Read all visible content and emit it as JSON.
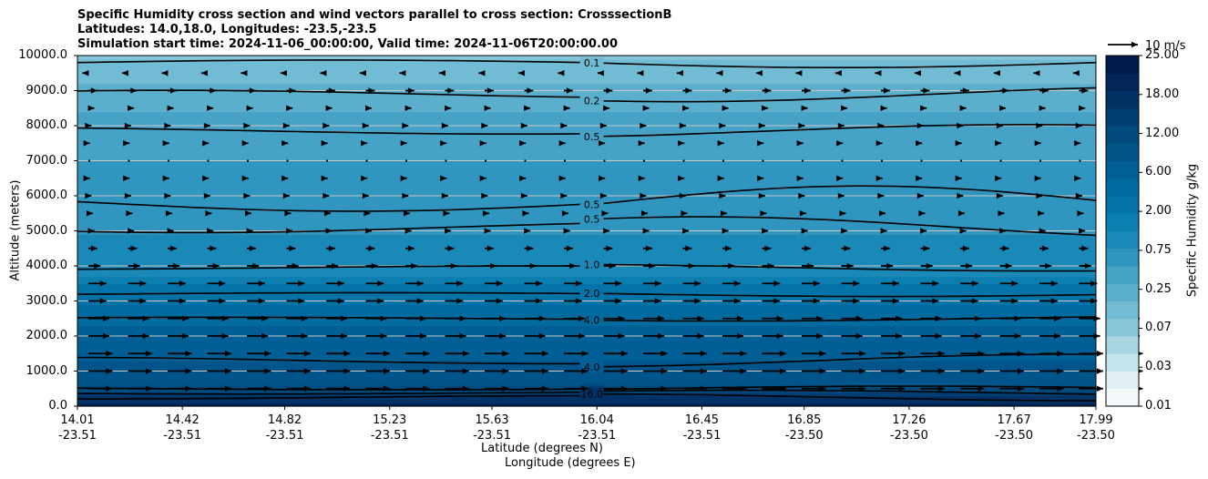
{
  "title": {
    "line1": "Specific Humidity cross section and wind vectors parallel to cross section: CrosssectionB",
    "line2": "Latitudes: 14.0,18.0, Longitudes: -23.5,-23.5",
    "line3": "Simulation start time: 2024-11-06_00:00:00, Valid time: 2024-11-06T20:00:00.00"
  },
  "chart_data": {
    "type": "heatmap",
    "subtype": "filled contour cross section with contour lines and wind vectors",
    "ylabel": "Altitude (meters)",
    "xlabel_line1": "Latitude (degrees N)",
    "xlabel_line2": "Longitude (degrees E)",
    "ylim": [
      0,
      10000
    ],
    "y_ticks": [
      "0.0",
      "1000.0",
      "2000.0",
      "3000.0",
      "4000.0",
      "5000.0",
      "6000.0",
      "7000.0",
      "8000.0",
      "9000.0",
      "10000.0"
    ],
    "x_ticks": [
      {
        "lat": "14.01",
        "lon": "-23.51"
      },
      {
        "lat": "14.42",
        "lon": "-23.51"
      },
      {
        "lat": "14.82",
        "lon": "-23.51"
      },
      {
        "lat": "15.23",
        "lon": "-23.51"
      },
      {
        "lat": "15.63",
        "lon": "-23.51"
      },
      {
        "lat": "16.04",
        "lon": "-23.51"
      },
      {
        "lat": "16.45",
        "lon": "-23.51"
      },
      {
        "lat": "16.85",
        "lon": "-23.50"
      },
      {
        "lat": "17.26",
        "lon": "-23.50"
      },
      {
        "lat": "17.67",
        "lon": "-23.50"
      },
      {
        "lat": "17.99",
        "lon": "-23.50"
      }
    ],
    "colorbar": {
      "label": "Specific Humidity g/kg",
      "ticks": [
        "0.01",
        "0.03",
        "0.07",
        "0.25",
        "0.75",
        "2.00",
        "6.00",
        "12.00",
        "18.00",
        "25.00"
      ],
      "colors": [
        "#f4fafc",
        "#e0f0f4",
        "#c6e4ed",
        "#a9d5e3",
        "#8ac6da",
        "#72bbd4",
        "#5bafcd",
        "#46a2c6",
        "#3095bf",
        "#1a89b8",
        "#0c7fb0",
        "#0474a8",
        "#016a9f",
        "#015f96",
        "#01558a",
        "#014a7e",
        "#003e72",
        "#013265",
        "#012657",
        "#001a4a"
      ]
    },
    "contour_levels": [
      "0.1",
      "0.2",
      "0.5",
      "0.5",
      "0.5",
      "1.0",
      "2.0",
      "4.0",
      "4.0",
      "8.0",
      "12.0",
      "16.0",
      "16.0",
      "16.0",
      "16.0"
    ],
    "humidity_profile": [
      {
        "alt": 0,
        "q": 20
      },
      {
        "alt": 300,
        "q": 16
      },
      {
        "alt": 600,
        "q": 10
      },
      {
        "alt": 1500,
        "q": 7
      },
      {
        "alt": 2500,
        "q": 5
      },
      {
        "alt": 3200,
        "q": 2.5
      },
      {
        "alt": 3800,
        "q": 1.2
      },
      {
        "alt": 4500,
        "q": 0.9
      },
      {
        "alt": 5500,
        "q": 0.7
      },
      {
        "alt": 6500,
        "q": 0.6
      },
      {
        "alt": 7500,
        "q": 0.5
      },
      {
        "alt": 8500,
        "q": 0.3
      },
      {
        "alt": 9500,
        "q": 0.15
      },
      {
        "alt": 10000,
        "q": 0.1
      }
    ],
    "wind_key": {
      "label": "10 m/s",
      "speed": 10
    },
    "wind_profile": [
      {
        "alt": 9500,
        "u": -2
      },
      {
        "alt": 9000,
        "u": 3
      },
      {
        "alt": 8500,
        "u": 2
      },
      {
        "alt": 8000,
        "u": 1
      },
      {
        "alt": 7500,
        "u": 0.5
      },
      {
        "alt": 7000,
        "u": 0.3
      },
      {
        "alt": 6500,
        "u": 0.5
      },
      {
        "alt": 6000,
        "u": 1
      },
      {
        "alt": 5500,
        "u": 1.5
      },
      {
        "alt": 5000,
        "u": 2
      },
      {
        "alt": 4500,
        "u": 3
      },
      {
        "alt": 4000,
        "u": 4
      },
      {
        "alt": 3500,
        "u": 6
      },
      {
        "alt": 3000,
        "u": 6
      },
      {
        "alt": 2500,
        "u": 7
      },
      {
        "alt": 2000,
        "u": 7
      },
      {
        "alt": 1500,
        "u": 8
      },
      {
        "alt": 1000,
        "u": 8
      },
      {
        "alt": 500,
        "u": 8
      }
    ]
  }
}
